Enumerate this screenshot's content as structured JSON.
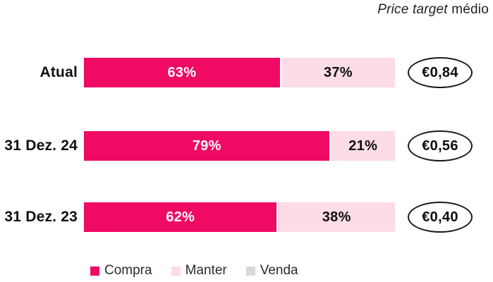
{
  "title": {
    "italic": "Price target",
    "regular": " médio"
  },
  "colors": {
    "compra": "#F00A64",
    "manter": "#FCDCE6",
    "venda": "#D9D9D9"
  },
  "rows": [
    {
      "label": "Atual",
      "compra_pct": 63,
      "compra_label": "63%",
      "manter_label": "37%",
      "price_target": "€0,84"
    },
    {
      "label": "31 Dez. 24",
      "compra_pct": 79,
      "compra_label": "79%",
      "manter_label": "21%",
      "price_target": "€0,56"
    },
    {
      "label": "31 Dez. 23",
      "compra_pct": 62,
      "compra_label": "62%",
      "manter_label": "38%",
      "price_target": "€0,40"
    }
  ],
  "legend": [
    {
      "label": "Compra",
      "color": "#F00A64"
    },
    {
      "label": "Manter",
      "color": "#FCDCE6"
    },
    {
      "label": "Venda",
      "color": "#D9D9D9"
    }
  ],
  "chart_data": {
    "type": "bar",
    "orientation": "horizontal",
    "stacked": true,
    "categories": [
      "Atual",
      "31 Dez. 24",
      "31 Dez. 23"
    ],
    "series": [
      {
        "name": "Compra",
        "color": "#F00A64",
        "values": [
          63,
          79,
          62
        ]
      },
      {
        "name": "Manter",
        "color": "#FCDCE6",
        "values": [
          37,
          21,
          38
        ]
      },
      {
        "name": "Venda",
        "color": "#D9D9D9",
        "values": [
          0,
          0,
          0
        ]
      }
    ],
    "data_labels_pct": [
      [
        "63%",
        "37%"
      ],
      [
        "79%",
        "21%"
      ],
      [
        "62%",
        "38%"
      ]
    ],
    "annotation_title": "Price target médio",
    "price_targets": [
      "€0,84",
      "€0,56",
      "€0,40"
    ],
    "xlim": [
      0,
      100
    ],
    "grid": false,
    "legend_position": "bottom"
  }
}
